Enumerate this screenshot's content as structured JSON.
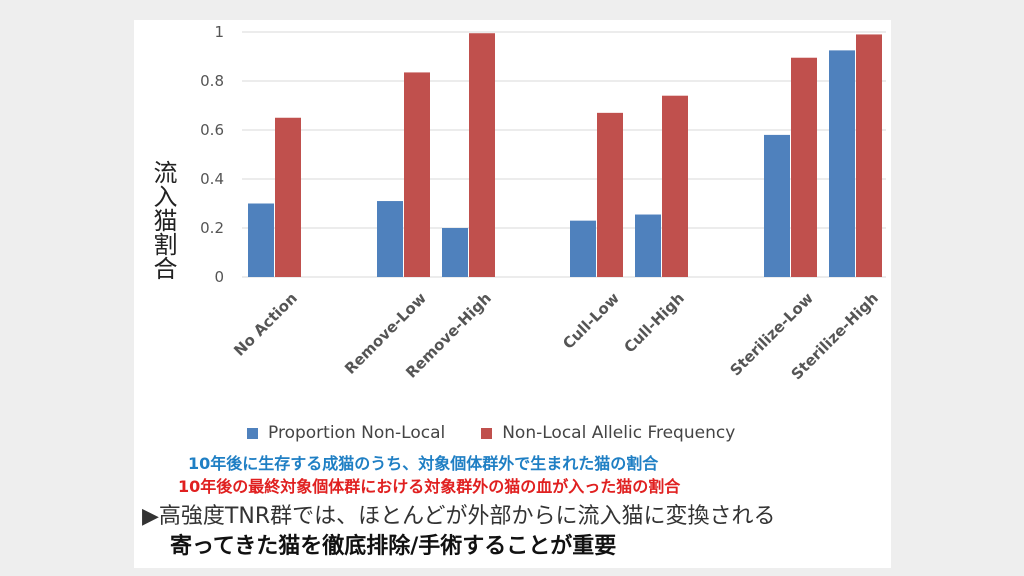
{
  "chart_data": {
    "type": "bar",
    "categories": [
      "No Action",
      "Remove-Low",
      "Remove-High",
      "Cull-Low",
      "Cull-High",
      "Sterilize-Low",
      "Sterilize-High"
    ],
    "series": [
      {
        "name": "Proportion Non-Local",
        "color": "#4f81bd",
        "values": [
          0.3,
          0.31,
          0.2,
          0.23,
          0.255,
          0.58,
          0.925
        ]
      },
      {
        "name": "Non-Local Allelic Frequency",
        "color": "#c0504d",
        "values": [
          0.65,
          0.835,
          0.995,
          0.67,
          0.74,
          0.895,
          0.99
        ]
      }
    ],
    "ylim": [
      0,
      1
    ],
    "yticks": [
      "0",
      "0.2",
      "0.4",
      "0.6",
      "0.8",
      "1"
    ],
    "ylabel": "流入猫割合",
    "xlabel": "",
    "title": "",
    "grid": true,
    "legend_position": "bottom"
  },
  "notes": {
    "line1": "10年後に生存する成猫のうち、対象個体群外で生まれた猫の割合",
    "line2": "10年後の最終対象個体群における対象群外の猫の血が入った猫の割合"
  },
  "conclusion": {
    "line1": "▶高強度TNR群では、ほとんどが外部からに流入猫に変換される",
    "line2": "寄ってきた猫を徹底排除/手術することが重要"
  }
}
